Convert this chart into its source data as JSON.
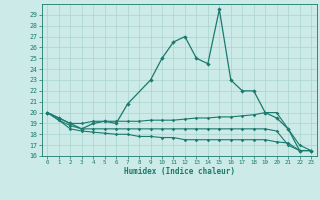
{
  "xlabel": "Humidex (Indice chaleur)",
  "x": [
    0,
    1,
    2,
    3,
    4,
    5,
    6,
    7,
    8,
    9,
    10,
    11,
    12,
    13,
    14,
    15,
    16,
    17,
    18,
    19,
    20,
    21,
    22,
    23
  ],
  "line1": [
    20.0,
    19.5,
    19.0,
    18.5,
    19.0,
    19.2,
    19.0,
    20.8,
    23.0,
    25.0,
    26.5,
    27.0,
    25.0,
    24.5,
    29.5,
    23.0,
    22.0,
    22.0,
    20.0,
    19.5,
    18.5,
    16.5,
    16.5
  ],
  "line1_x": [
    0,
    1,
    2,
    3,
    4,
    5,
    6,
    7,
    9,
    10,
    11,
    12,
    13,
    14,
    15,
    16,
    17,
    18,
    19,
    20,
    21,
    22,
    23
  ],
  "line2": [
    20.0,
    19.5,
    19.0,
    19.0,
    19.2,
    19.2,
    19.2,
    19.2,
    19.2,
    19.3,
    19.3,
    19.3,
    19.4,
    19.5,
    19.5,
    19.6,
    19.6,
    19.7,
    19.8,
    20.0,
    20.0,
    18.5,
    17.0,
    16.5
  ],
  "line3": [
    20.0,
    19.3,
    18.8,
    18.5,
    18.5,
    18.5,
    18.5,
    18.5,
    18.5,
    18.5,
    18.5,
    18.5,
    18.5,
    18.5,
    18.5,
    18.5,
    18.5,
    18.5,
    18.5,
    18.5,
    18.3,
    17.0,
    16.5,
    16.5
  ],
  "line4": [
    20.0,
    19.3,
    18.5,
    18.3,
    18.2,
    18.1,
    18.0,
    18.0,
    17.8,
    17.8,
    17.7,
    17.7,
    17.5,
    17.5,
    17.5,
    17.5,
    17.5,
    17.5,
    17.5,
    17.5,
    17.3,
    17.2,
    16.5,
    16.5
  ],
  "color": "#1a7a6e",
  "bg_color": "#cceae7",
  "grid_color": "#aad4d0",
  "ylim": [
    16,
    30
  ],
  "yticks": [
    16,
    17,
    18,
    19,
    20,
    21,
    22,
    23,
    24,
    25,
    26,
    27,
    28,
    29
  ],
  "xlim": [
    -0.5,
    23.5
  ],
  "xticks": [
    0,
    1,
    2,
    3,
    4,
    5,
    6,
    7,
    8,
    9,
    10,
    11,
    12,
    13,
    14,
    15,
    16,
    17,
    18,
    19,
    20,
    21,
    22,
    23
  ]
}
